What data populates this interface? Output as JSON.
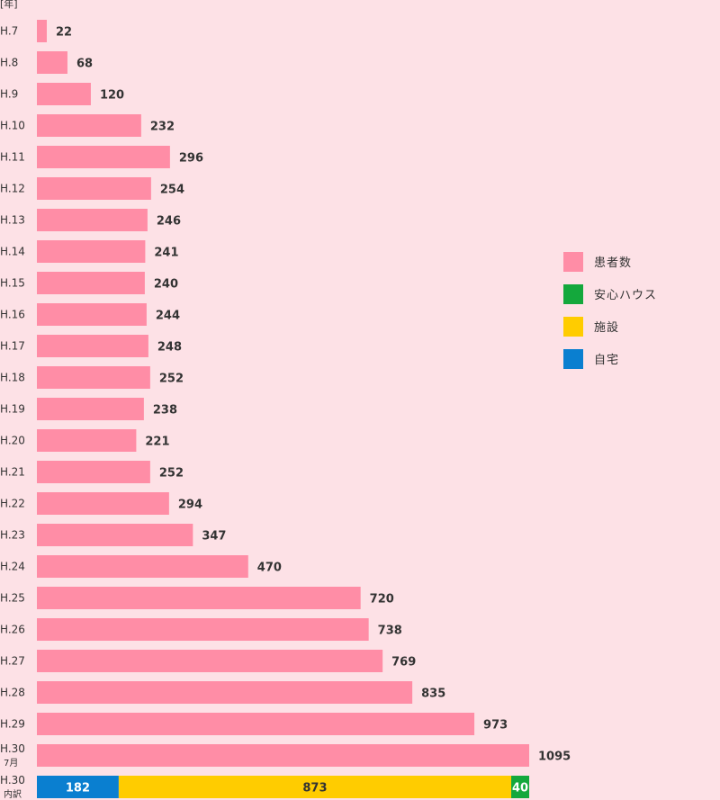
{
  "chart_data": {
    "type": "bar",
    "orientation": "horizontal",
    "y_unit_label": "[年]",
    "categories": [
      "H.7",
      "H.8",
      "H.9",
      "H.10",
      "H.11",
      "H.12",
      "H.13",
      "H.14",
      "H.15",
      "H.16",
      "H.17",
      "H.18",
      "H.19",
      "H.20",
      "H.21",
      "H.22",
      "H.23",
      "H.24",
      "H.25",
      "H.26",
      "H.27",
      "H.28",
      "H.29",
      "H.30\n7月"
    ],
    "series": [
      {
        "name": "患者数",
        "color": "#ff8da6",
        "values": [
          22,
          68,
          120,
          232,
          296,
          254,
          246,
          241,
          240,
          244,
          248,
          252,
          238,
          221,
          252,
          294,
          347,
          470,
          720,
          738,
          769,
          835,
          973,
          1095
        ]
      }
    ],
    "breakdown": {
      "category": "H.30\n内訳",
      "segments": [
        {
          "name": "自宅",
          "value": 182,
          "color": "#0a7fd0"
        },
        {
          "name": "施設",
          "value": 873,
          "color": "#ffcc00"
        },
        {
          "name": "安心ハウス",
          "value": 40,
          "color": "#14a83c"
        }
      ]
    },
    "legend": {
      "placement": "right",
      "items": [
        {
          "label": "患者数",
          "color": "#ff8da6"
        },
        {
          "label": "安心ハウス",
          "color": "#14a83c"
        },
        {
          "label": "施設",
          "color": "#ffcc00"
        },
        {
          "label": "自宅",
          "color": "#0a7fd0"
        }
      ]
    },
    "xlim": [
      0,
      1095
    ],
    "grid": false
  }
}
